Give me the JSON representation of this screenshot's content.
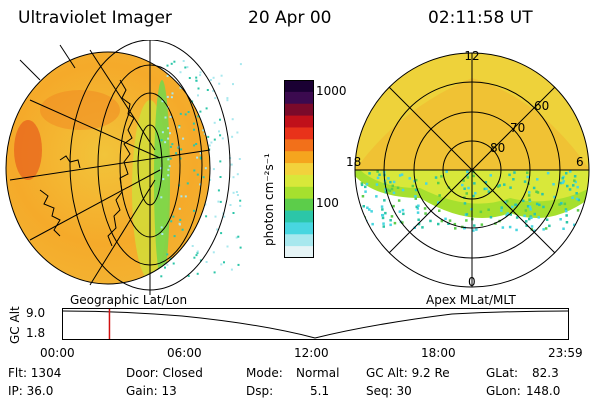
{
  "header": {
    "instrument": "Ultraviolet Imager",
    "date": "20 Apr 00",
    "time": "02:11:58 UT"
  },
  "left_panel": {
    "projection_label": "Geographic Lat/Lon"
  },
  "colorbar": {
    "unit": "photon cm⁻²s⁻¹",
    "ticks": [
      "1000",
      "100"
    ],
    "colors": [
      "#1a0033",
      "#3b0a4f",
      "#7a0a2a",
      "#c0101a",
      "#e8321a",
      "#f2701a",
      "#f5a51e",
      "#f2d23c",
      "#d8e83a",
      "#a6e02e",
      "#5ccd4a",
      "#2cc6a8",
      "#48d6e0",
      "#a8e8ee",
      "#e6f4f6"
    ]
  },
  "right_panel": {
    "projection_label": "Apex MLat/MLT",
    "mlt_labels": {
      "top": "12",
      "left": "18",
      "right": "6",
      "bottom": "0"
    },
    "mlat_labels": [
      "60",
      "70",
      "80"
    ]
  },
  "timeline": {
    "ylabel": "GC Alt",
    "yticks": [
      "9.0",
      "1.8"
    ],
    "xticks": [
      "00:00",
      "06:00",
      "12:00",
      "18:00",
      "23:59"
    ],
    "marker_fraction": 0.092
  },
  "info": {
    "flt": "Flt: 1304",
    "door": "Door: Closed",
    "mode_label": "Mode:",
    "mode_value": "Normal",
    "gcalt": "GC Alt: 9.2 Re",
    "glat_label": "GLat:",
    "glat_value": "82.3",
    "ip": "IP: 36.0",
    "gain": "Gain: 13",
    "dsp_label": "Dsp:",
    "dsp_value": "5.1",
    "seq": "Seq: 30",
    "glon_label": "GLon:",
    "glon_value": "148.0"
  }
}
